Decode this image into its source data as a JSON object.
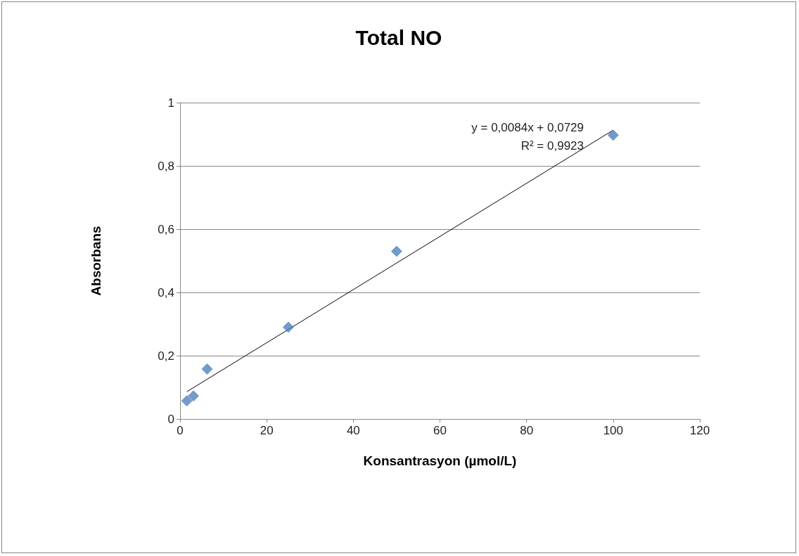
{
  "chart_data": {
    "type": "scatter",
    "title": "Total NO",
    "xlabel": "Konsantrasyon (µmol/L)",
    "ylabel": "Absorbans",
    "series": [
      {
        "color": "#4f81bd",
        "x": [
          1.56,
          3.1,
          6.25,
          25,
          50,
          100
        ],
        "values": [
          0.057,
          0.073,
          0.158,
          0.29,
          0.53,
          0.897
        ],
        "marker": "diamond"
      },
      {
        "type": "line",
        "color": "#000000",
        "x": [
          1.56,
          100
        ],
        "values": [
          0.086,
          0.913
        ],
        "marker": "none"
      }
    ],
    "annotations": [
      "y = 0,0084x + 0,0729",
      "R² = 0,9923"
    ],
    "xlim": [
      0,
      120
    ],
    "xticks": [
      0,
      20,
      40,
      60,
      80,
      100,
      120
    ],
    "ylim": [
      0,
      1
    ],
    "yticks": [
      0,
      {
        "value": 0.2,
        "label": "0,2"
      },
      {
        "value": 0.4,
        "label": "0,4"
      },
      {
        "value": 0.6,
        "label": "0,6"
      },
      {
        "value": 0.8,
        "label": "0,8"
      },
      1
    ],
    "grid": "y"
  }
}
